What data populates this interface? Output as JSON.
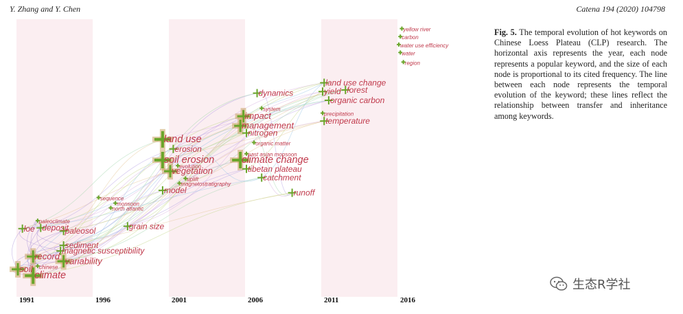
{
  "header": {
    "authors": "Y. Zhang and Y. Chen",
    "journal": "Catena 194 (2020) 104798"
  },
  "caption": {
    "label": "Fig. 5.",
    "text": "The temporal evolution of hot keywords on Chinese Loess Plateau (CLP) research. The horizontal axis represents the year, each node represents a popular keyword, and the size of each node is proportional to its cited frequency. The line between each node represents the temporal evolution of the keyword; these lines reflect the relationship between transfer and inheritance among keywords."
  },
  "watermark": {
    "text": "生态R学社",
    "icon": "wechat-icon"
  },
  "colors": {
    "keyword": "#c0394b",
    "node": "#6aa52a",
    "halo": "#c9a463",
    "band": "#fbeef1"
  },
  "timeline": {
    "year_labels": [
      "1991",
      "1996",
      "2001",
      "2006",
      "2011",
      "2016"
    ]
  },
  "keywords": [
    {
      "label": "yellow river",
      "year": 2016.2,
      "row": 1,
      "size": 0
    },
    {
      "label": "carbon",
      "year": 2016.1,
      "row": 2,
      "size": 0
    },
    {
      "label": "water use efficiency",
      "year": 2016.0,
      "row": 3,
      "size": 0
    },
    {
      "label": "water",
      "year": 2016.1,
      "row": 4,
      "size": 0
    },
    {
      "label": "region",
      "year": 2016.3,
      "row": 5.2,
      "size": 0
    },
    {
      "label": "land use change",
      "year": 2011.1,
      "row": 7.8,
      "size": 1
    },
    {
      "label": "forest",
      "year": 2012.5,
      "row": 8.7,
      "size": 1
    },
    {
      "label": "dynamics",
      "year": 2006.7,
      "row": 9.1,
      "size": 1
    },
    {
      "label": "yield",
      "year": 2011.0,
      "row": 8.9,
      "size": 1
    },
    {
      "label": "organic carbon",
      "year": 2011.4,
      "row": 10.0,
      "size": 1
    },
    {
      "label": "system",
      "year": 2007.0,
      "row": 11.0,
      "size": 0
    },
    {
      "label": "precipitation",
      "year": 2011.0,
      "row": 11.6,
      "size": 0
    },
    {
      "label": "impact",
      "year": 2005.8,
      "row": 12.0,
      "size": 2
    },
    {
      "label": "temperature",
      "year": 2011.1,
      "row": 12.6,
      "size": 1
    },
    {
      "label": "management",
      "year": 2005.6,
      "row": 13.2,
      "size": 2
    },
    {
      "label": "nitrogen",
      "year": 2006.0,
      "row": 14.1,
      "size": 1
    },
    {
      "label": "land use",
      "year": 2000.5,
      "row": 14.9,
      "size": 3
    },
    {
      "label": "organic matter",
      "year": 2006.5,
      "row": 15.3,
      "size": 0
    },
    {
      "label": "erosion",
      "year": 2001.2,
      "row": 16.1,
      "size": 1
    },
    {
      "label": "east asian monsoon",
      "year": 2006.0,
      "row": 16.7,
      "size": 0
    },
    {
      "label": "soil erosion",
      "year": 2000.5,
      "row": 17.5,
      "size": 3
    },
    {
      "label": "climate change",
      "year": 2005.6,
      "row": 17.5,
      "size": 3
    },
    {
      "label": "evolution",
      "year": 2001.5,
      "row": 18.2,
      "size": 0
    },
    {
      "label": "tibetan plateau",
      "year": 2006.0,
      "row": 18.6,
      "size": 1
    },
    {
      "label": "vegetation",
      "year": 2001.0,
      "row": 18.9,
      "size": 2
    },
    {
      "label": "catchment",
      "year": 2007.0,
      "row": 19.7,
      "size": 1
    },
    {
      "label": "uplift",
      "year": 2002.0,
      "row": 19.8,
      "size": 0
    },
    {
      "label": "magnetostratigraphy",
      "year": 2001.6,
      "row": 20.4,
      "size": 0
    },
    {
      "label": "model",
      "year": 2000.5,
      "row": 21.3,
      "size": 1
    },
    {
      "label": "runoff",
      "year": 2009.0,
      "row": 21.6,
      "size": 1
    },
    {
      "label": "sequence",
      "year": 1996.3,
      "row": 22.2,
      "size": 0
    },
    {
      "label": "monsoon",
      "year": 1997.4,
      "row": 22.9,
      "size": 0
    },
    {
      "label": "north atlantic",
      "year": 1997.1,
      "row": 23.5,
      "size": 0
    },
    {
      "label": "paleoclimate",
      "year": 1992.3,
      "row": 25.1,
      "size": 0
    },
    {
      "label": "grain size",
      "year": 1998.2,
      "row": 25.8,
      "size": 1
    },
    {
      "label": "loe",
      "year": 1991.3,
      "row": 26.1,
      "size": 1
    },
    {
      "label": "deposit",
      "year": 1992.5,
      "row": 26.0,
      "size": 1
    },
    {
      "label": "paleosol",
      "year": 1994.0,
      "row": 26.4,
      "size": 1
    },
    {
      "label": "sediment",
      "year": 1994.0,
      "row": 28.2,
      "size": 1
    },
    {
      "label": "magnetic susceptibility",
      "year": 1993.8,
      "row": 28.9,
      "size": 1
    },
    {
      "label": "record",
      "year": 1992.0,
      "row": 29.6,
      "size": 2
    },
    {
      "label": "variability",
      "year": 1994.0,
      "row": 30.2,
      "size": 2
    },
    {
      "label": "soil",
      "year": 1991.0,
      "row": 31.2,
      "size": 2
    },
    {
      "label": "chinese",
      "year": 1992.3,
      "row": 30.8,
      "size": 0
    },
    {
      "label": "climate",
      "year": 1992.0,
      "row": 32.0,
      "size": 3
    }
  ]
}
